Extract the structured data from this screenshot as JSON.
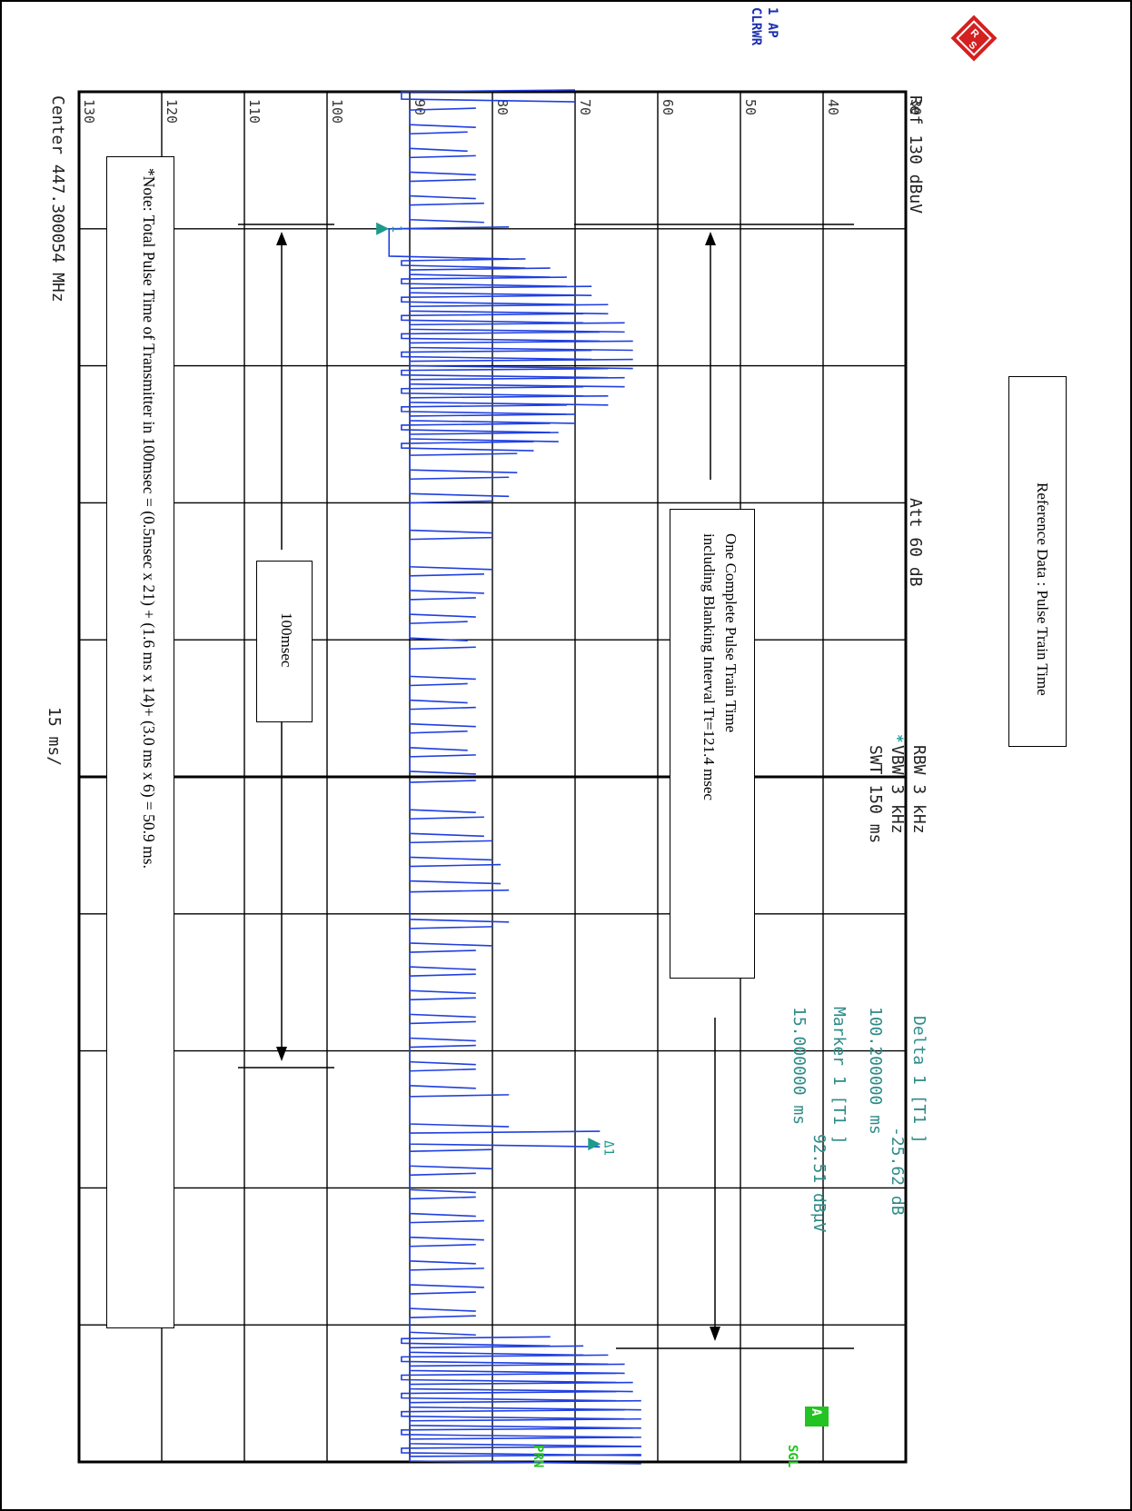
{
  "header": {
    "ref": "Ref  130 dBuV",
    "att": "Att  60 dB",
    "rbw": "RBW 3 kHz",
    "vbw": "VBW 3 kHz",
    "vbw_star": "*",
    "swt": "SWT 150 ms",
    "delta": "Delta 1 [T1 ]",
    "delta_value_db": "-25.62 dB",
    "delta_value_time": "100.200000 ms",
    "marker": "Marker 1 [T1 ]",
    "marker_level": "92.51 dBμV",
    "marker_time": "15.000000 ms"
  },
  "side_labels": {
    "trace_1ap": "1 AP",
    "trace_clrwr": "CLRWR",
    "a_badge": "A",
    "sgl": "SGL",
    "prn": "PRN"
  },
  "footer": {
    "center": "Center 447.300054 MHz",
    "span": "15 ms/"
  },
  "annotations": {
    "reference_title": "Reference Data : Pulse Train Time",
    "pulse_train_line1": "One Complete Pulse Train Time",
    "pulse_train_line2": "including Blanking Interval Tt=121.4 msec",
    "hundred_msec": "100msec",
    "note": "*Note: Total Pulse Time of Transmitter in 100msec = (0.5msec x 21) + (1.6 ms x 14)+ (3.0 ms x 6) = 50.9 ms."
  },
  "colors": {
    "trace": "#1f3fe0",
    "marker": "#1f9a8a",
    "grid": "#000000",
    "teal_text": "#2e8b87",
    "blue_text": "#1a2fb0",
    "green": "#22c322"
  },
  "icons": {
    "logo": "rohde-schwarz-logo-icon"
  },
  "chart_data": {
    "type": "line",
    "title": "",
    "xlabel": "",
    "ylabel": "",
    "x_unit": "ms",
    "y_unit": "dBμV",
    "xlim": [
      0,
      150
    ],
    "ylim": [
      30,
      130
    ],
    "y_ticks": [
      30,
      40,
      50,
      60,
      70,
      80,
      90,
      100,
      110,
      120,
      130
    ],
    "x_ticks": [
      0,
      15,
      30,
      45,
      60,
      75,
      90,
      105,
      120,
      135,
      150
    ],
    "grid": true,
    "markers": [
      {
        "name": "1",
        "x": 15.0,
        "y": 92.51
      },
      {
        "name": "Δ1",
        "x": 115.2,
        "y": 66.89
      }
    ],
    "pulses": [
      {
        "t": 0.0,
        "w": 0.8,
        "peak": 91,
        "floor": 70
      },
      {
        "t": 2.0,
        "w": 1.6,
        "peak": 90,
        "floor": 82
      },
      {
        "t": 4.6,
        "w": 1.6,
        "peak": 90,
        "floor": 83
      },
      {
        "t": 7.2,
        "w": 1.6,
        "peak": 90,
        "floor": 82
      },
      {
        "t": 9.8,
        "w": 1.6,
        "peak": 90,
        "floor": 82
      },
      {
        "t": 12.4,
        "w": 1.6,
        "peak": 90,
        "floor": 81
      },
      {
        "t": 15.0,
        "w": 3.0,
        "peak": 92.5,
        "floor": 78
      },
      {
        "t": 18.5,
        "w": 0.5,
        "peak": 91,
        "floor": 76
      },
      {
        "t": 19.5,
        "w": 0.5,
        "peak": 90,
        "floor": 73
      },
      {
        "t": 20.5,
        "w": 0.5,
        "peak": 91,
        "floor": 71
      },
      {
        "t": 21.5,
        "w": 0.5,
        "peak": 90,
        "floor": 68
      },
      {
        "t": 22.5,
        "w": 0.5,
        "peak": 91,
        "floor": 70
      },
      {
        "t": 23.5,
        "w": 0.5,
        "peak": 90,
        "floor": 66
      },
      {
        "t": 24.5,
        "w": 0.5,
        "peak": 91,
        "floor": 69
      },
      {
        "t": 25.5,
        "w": 0.5,
        "peak": 90,
        "floor": 64
      },
      {
        "t": 26.5,
        "w": 0.5,
        "peak": 91,
        "floor": 67
      },
      {
        "t": 27.5,
        "w": 0.5,
        "peak": 90,
        "floor": 63
      },
      {
        "t": 28.5,
        "w": 0.5,
        "peak": 91,
        "floor": 68
      },
      {
        "t": 29.5,
        "w": 0.5,
        "peak": 90,
        "floor": 63
      },
      {
        "t": 30.5,
        "w": 0.5,
        "peak": 91,
        "floor": 66
      },
      {
        "t": 31.5,
        "w": 0.5,
        "peak": 90,
        "floor": 64
      },
      {
        "t": 32.5,
        "w": 0.5,
        "peak": 91,
        "floor": 69
      },
      {
        "t": 33.5,
        "w": 0.5,
        "peak": 90,
        "floor": 66
      },
      {
        "t": 34.5,
        "w": 0.5,
        "peak": 91,
        "floor": 71
      },
      {
        "t": 35.5,
        "w": 0.5,
        "peak": 90,
        "floor": 70
      },
      {
        "t": 36.5,
        "w": 0.5,
        "peak": 91,
        "floor": 73
      },
      {
        "t": 37.5,
        "w": 0.5,
        "peak": 90,
        "floor": 72
      },
      {
        "t": 38.5,
        "w": 0.5,
        "peak": 91,
        "floor": 75
      },
      {
        "t": 39.8,
        "w": 1.6,
        "peak": 90,
        "floor": 77
      },
      {
        "t": 42.4,
        "w": 1.6,
        "peak": 90,
        "floor": 78
      },
      {
        "t": 45.0,
        "w": 3.0,
        "peak": 90,
        "floor": 80
      },
      {
        "t": 49.0,
        "w": 3.0,
        "peak": 90,
        "floor": 80
      },
      {
        "t": 53.0,
        "w": 1.6,
        "peak": 90,
        "floor": 81
      },
      {
        "t": 55.6,
        "w": 1.6,
        "peak": 90,
        "floor": 82
      },
      {
        "t": 58.2,
        "w": 1.6,
        "peak": 90,
        "floor": 83
      },
      {
        "t": 61.0,
        "w": 3.0,
        "peak": 90,
        "floor": 82
      },
      {
        "t": 65.0,
        "w": 1.6,
        "peak": 90,
        "floor": 83
      },
      {
        "t": 67.6,
        "w": 1.6,
        "peak": 90,
        "floor": 82
      },
      {
        "t": 70.2,
        "w": 1.6,
        "peak": 90,
        "floor": 83
      },
      {
        "t": 72.8,
        "w": 1.6,
        "peak": 90,
        "floor": 82
      },
      {
        "t": 75.6,
        "w": 3.0,
        "peak": 90,
        "floor": 82
      },
      {
        "t": 79.6,
        "w": 1.6,
        "peak": 90,
        "floor": 81
      },
      {
        "t": 82.2,
        "w": 1.6,
        "peak": 90,
        "floor": 80
      },
      {
        "t": 84.8,
        "w": 1.6,
        "peak": 90,
        "floor": 79
      },
      {
        "t": 87.6,
        "w": 3.0,
        "peak": 90,
        "floor": 78
      },
      {
        "t": 91.6,
        "w": 1.6,
        "peak": 90,
        "floor": 80
      },
      {
        "t": 94.2,
        "w": 1.6,
        "peak": 90,
        "floor": 82
      },
      {
        "t": 96.8,
        "w": 1.6,
        "peak": 90,
        "floor": 82
      },
      {
        "t": 99.4,
        "w": 1.6,
        "peak": 90,
        "floor": 82
      },
      {
        "t": 102.0,
        "w": 1.6,
        "peak": 90,
        "floor": 82
      },
      {
        "t": 104.6,
        "w": 1.6,
        "peak": 90,
        "floor": 82
      },
      {
        "t": 107.2,
        "w": 1.6,
        "peak": 90,
        "floor": 82
      },
      {
        "t": 110.0,
        "w": 3.0,
        "peak": 90,
        "floor": 78
      },
      {
        "t": 114.0,
        "w": 1.2,
        "peak": 90,
        "floor": 67
      },
      {
        "t": 116.0,
        "w": 1.6,
        "peak": 90,
        "floor": 80
      },
      {
        "t": 118.6,
        "w": 1.6,
        "peak": 90,
        "floor": 82
      },
      {
        "t": 121.2,
        "w": 1.6,
        "peak": 90,
        "floor": 82
      },
      {
        "t": 123.8,
        "w": 1.6,
        "peak": 90,
        "floor": 81
      },
      {
        "t": 126.4,
        "w": 1.6,
        "peak": 90,
        "floor": 82
      },
      {
        "t": 129.0,
        "w": 1.6,
        "peak": 90,
        "floor": 81
      },
      {
        "t": 131.6,
        "w": 1.6,
        "peak": 90,
        "floor": 82
      },
      {
        "t": 134.2,
        "w": 1.6,
        "peak": 90,
        "floor": 82
      },
      {
        "t": 136.5,
        "w": 0.5,
        "peak": 91,
        "floor": 73
      },
      {
        "t": 137.5,
        "w": 0.5,
        "peak": 90,
        "floor": 69
      },
      {
        "t": 138.5,
        "w": 0.5,
        "peak": 91,
        "floor": 66
      },
      {
        "t": 139.5,
        "w": 0.5,
        "peak": 90,
        "floor": 64
      },
      {
        "t": 140.5,
        "w": 0.5,
        "peak": 91,
        "floor": 65
      },
      {
        "t": 141.5,
        "w": 0.5,
        "peak": 90,
        "floor": 63
      },
      {
        "t": 142.5,
        "w": 0.5,
        "peak": 91,
        "floor": 65
      },
      {
        "t": 143.5,
        "w": 0.5,
        "peak": 90,
        "floor": 62
      },
      {
        "t": 144.5,
        "w": 0.5,
        "peak": 91,
        "floor": 64
      },
      {
        "t": 145.5,
        "w": 0.5,
        "peak": 90,
        "floor": 62
      },
      {
        "t": 146.5,
        "w": 0.5,
        "peak": 91,
        "floor": 63
      },
      {
        "t": 147.5,
        "w": 0.5,
        "peak": 90,
        "floor": 62
      },
      {
        "t": 148.5,
        "w": 0.5,
        "peak": 91,
        "floor": 62
      },
      {
        "t": 149.4,
        "w": 0.5,
        "peak": 90,
        "floor": 62
      }
    ]
  }
}
